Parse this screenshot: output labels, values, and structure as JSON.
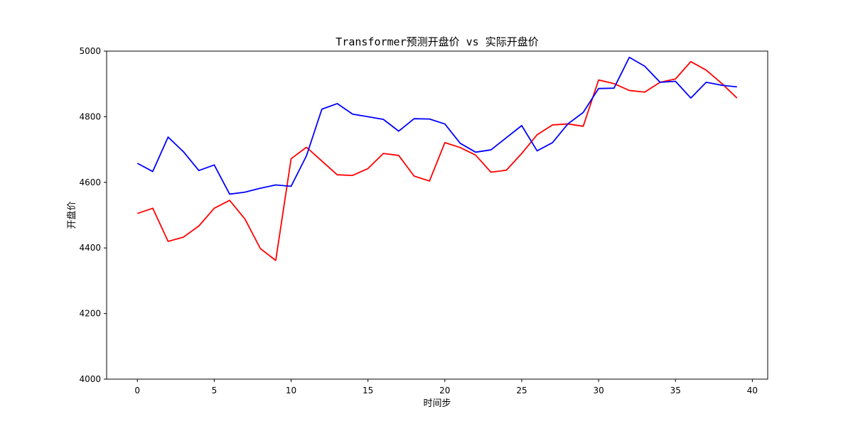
{
  "chart_data": {
    "type": "line",
    "title": "Transformer预测开盘价 vs 实际开盘价",
    "xlabel": "时间步",
    "ylabel": "开盘价",
    "xlim": [
      -2,
      41
    ],
    "ylim": [
      4000,
      5000
    ],
    "xticks": [
      0,
      5,
      10,
      15,
      20,
      25,
      30,
      35,
      40
    ],
    "yticks": [
      4000,
      4200,
      4400,
      4600,
      4800,
      5000
    ],
    "grid": false,
    "x": [
      0,
      1,
      2,
      3,
      4,
      5,
      6,
      7,
      8,
      9,
      10,
      11,
      12,
      13,
      14,
      15,
      16,
      17,
      18,
      19,
      20,
      21,
      22,
      23,
      24,
      25,
      26,
      27,
      28,
      29,
      30,
      31,
      32,
      33,
      34,
      35,
      36,
      37,
      38,
      39
    ],
    "series": [
      {
        "color": "#ff0000",
        "values": [
          4505,
          4521,
          4420,
          4433,
          4467,
          4521,
          4545,
          4488,
          4398,
          4362,
          4672,
          4707,
          4665,
          4623,
          4621,
          4642,
          4688,
          4682,
          4619,
          4604,
          4721,
          4706,
          4683,
          4631,
          4637,
          4688,
          4745,
          4775,
          4778,
          4771,
          4912,
          4901,
          4880,
          4875,
          4905,
          4915,
          4968,
          4942,
          4902,
          4857
        ]
      },
      {
        "color": "#0000ff",
        "values": [
          4658,
          4633,
          4738,
          4693,
          4636,
          4653,
          4564,
          4570,
          4582,
          4592,
          4588,
          4681,
          4823,
          4840,
          4808,
          4800,
          4792,
          4756,
          4794,
          4793,
          4778,
          4719,
          4692,
          4699,
          4736,
          4773,
          4696,
          4721,
          4778,
          4813,
          4886,
          4887,
          4981,
          4954,
          4905,
          4908,
          4857,
          4905,
          4896,
          4891
        ]
      }
    ]
  }
}
